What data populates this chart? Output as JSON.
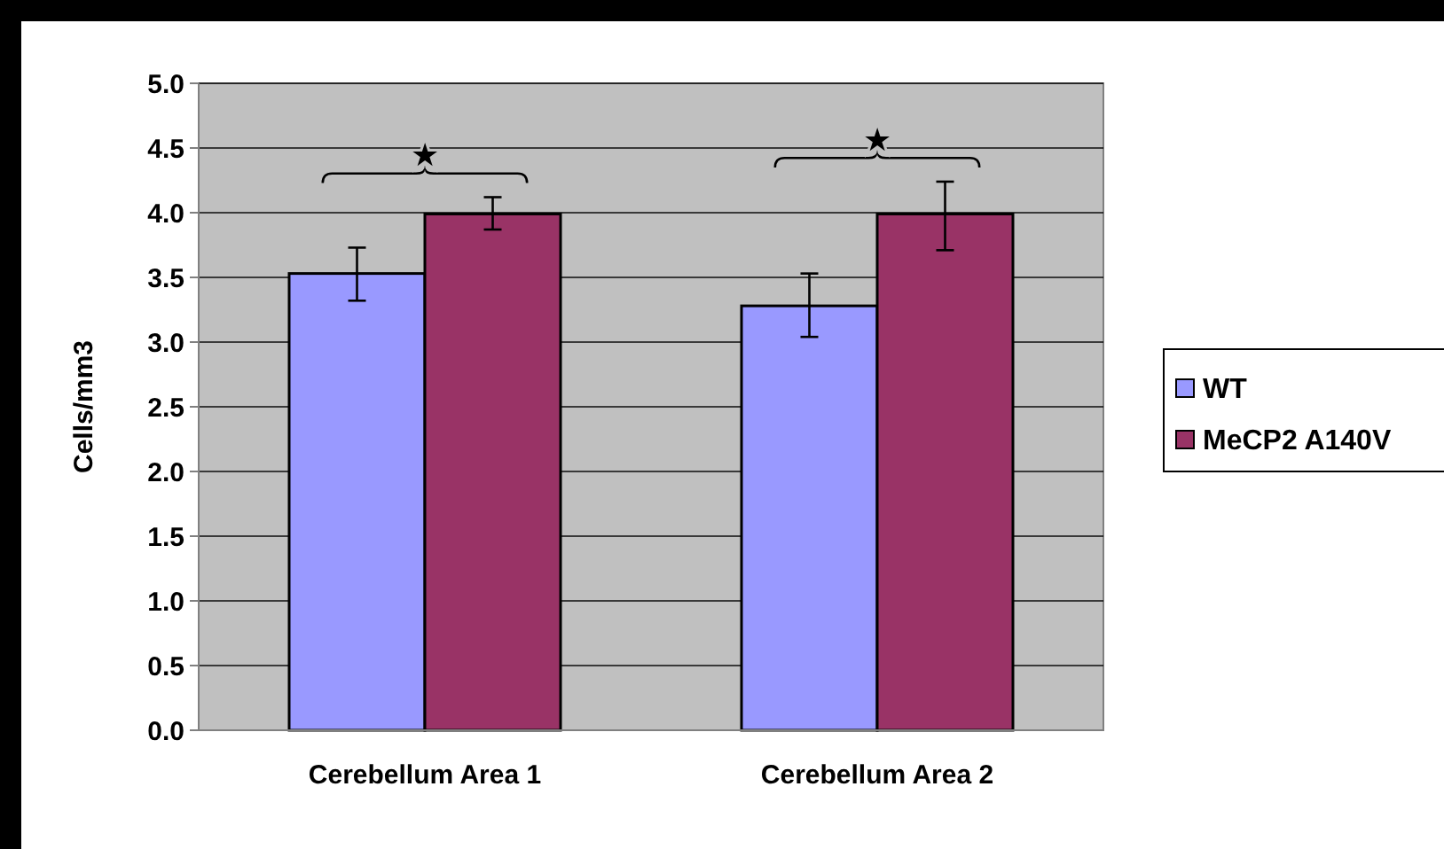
{
  "chart_data": {
    "type": "bar",
    "ylabel": "Cells/mm3",
    "categories": [
      "Cerebellum Area 1",
      "Cerebellum Area 2"
    ],
    "series": [
      {
        "name": "WT",
        "color": "#9999ff",
        "values": [
          3.53,
          3.28
        ],
        "errors": [
          [
            3.32,
            3.73
          ],
          [
            3.04,
            3.53
          ]
        ]
      },
      {
        "name": "MeCP2 A140V",
        "color": "#993366",
        "values": [
          3.99,
          3.99
        ],
        "errors": [
          [
            3.87,
            4.12
          ],
          [
            3.71,
            4.24
          ]
        ]
      }
    ],
    "ylim": [
      0,
      5
    ],
    "yticks": [
      {
        "value": 0,
        "label": "0.0"
      },
      {
        "value": 0.5,
        "label": "0.5"
      },
      {
        "value": 1,
        "label": "1.0"
      },
      {
        "value": 1.5,
        "label": "1.5"
      },
      {
        "value": 2,
        "label": "2.0"
      },
      {
        "value": 2.5,
        "label": "2.5"
      },
      {
        "value": 3,
        "label": "3.0"
      },
      {
        "value": 3.5,
        "label": "3.5"
      },
      {
        "value": 4,
        "label": "4.0"
      },
      {
        "value": 4.5,
        "label": "4.5"
      },
      {
        "value": 5,
        "label": "5.0"
      }
    ],
    "grid": "y",
    "legend": "right",
    "annotations": [
      "★",
      "★"
    ]
  }
}
